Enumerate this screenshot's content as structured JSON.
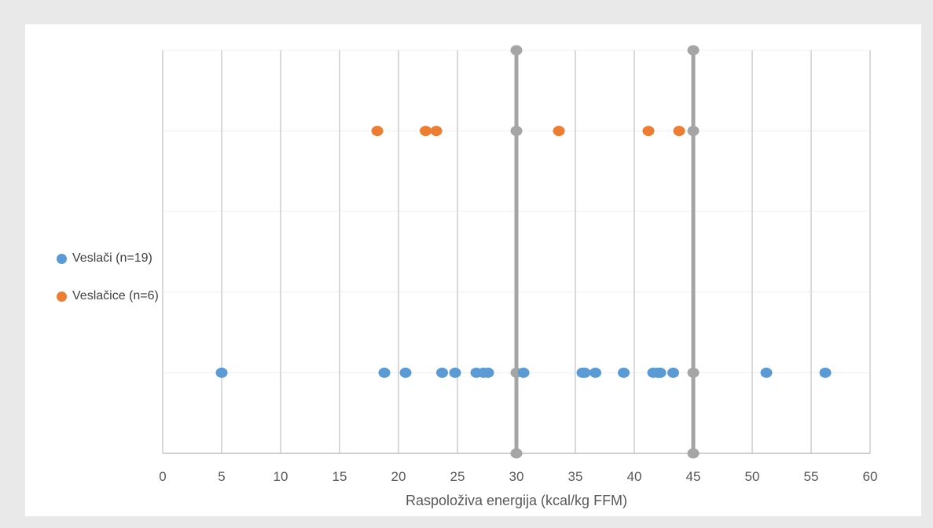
{
  "chart_data": {
    "type": "scatter",
    "xlabel": "Raspoloživa energija (kcal/kg FFM)",
    "xlim": [
      0,
      60
    ],
    "xticks": [
      0,
      5,
      10,
      15,
      20,
      25,
      30,
      35,
      40,
      45,
      50,
      55,
      60
    ],
    "ylim": [
      0,
      5
    ],
    "grid": true,
    "legend_position": "left",
    "series": [
      {
        "name": "Veslači (n=19)",
        "color": "#5b9bd5",
        "x": [
          5.0,
          18.8,
          20.6,
          23.7,
          24.8,
          26.6,
          27.2,
          27.6,
          30.6,
          35.6,
          35.8,
          36.7,
          39.1,
          41.6,
          42.2,
          43.3,
          51.2,
          56.2,
          42.0
        ],
        "y": [
          1,
          1,
          1,
          1,
          1,
          1,
          1,
          1,
          1,
          1,
          1,
          1,
          1,
          1,
          1,
          1,
          1,
          1,
          1
        ]
      },
      {
        "name": "Veslačice (n=6)",
        "color": "#ed7d31",
        "x": [
          18.2,
          22.3,
          23.2,
          33.6,
          41.2,
          43.8
        ],
        "y": [
          4,
          4,
          4,
          4,
          4,
          4
        ]
      }
    ],
    "reference_lines": [
      {
        "x": 30,
        "color": "#a5a5a5",
        "points_y": [
          0,
          1,
          4,
          5
        ]
      },
      {
        "x": 45,
        "color": "#a5a5a5",
        "points_y": [
          0,
          1,
          4,
          5
        ]
      }
    ]
  }
}
